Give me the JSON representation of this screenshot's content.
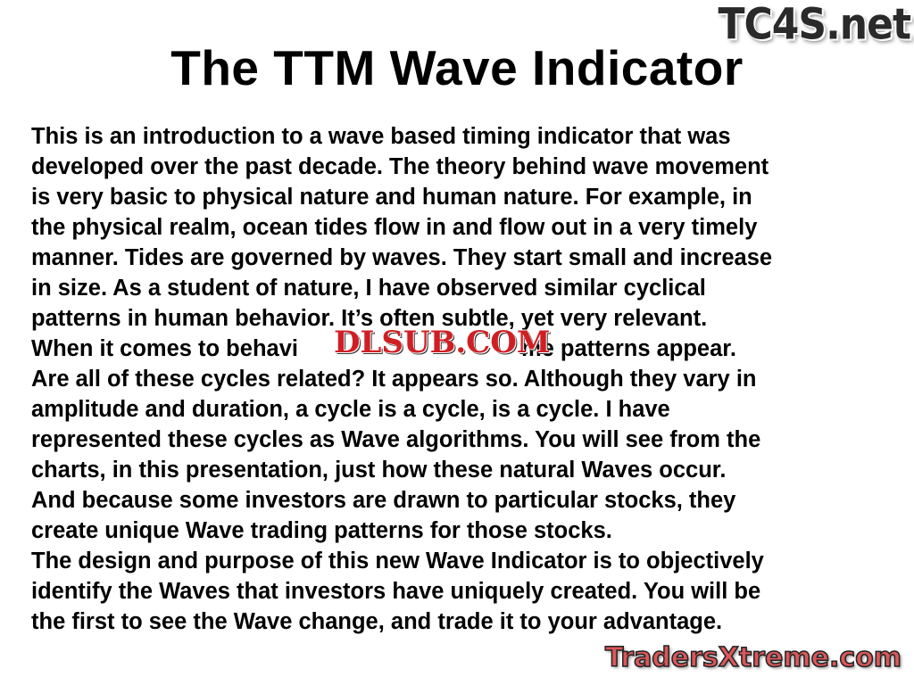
{
  "title": "The TTM Wave Indicator",
  "body_lines": [
    "This is an introduction to a wave based timing indicator that was",
    "developed over the past decade. The theory behind wave movement",
    "is very basic to physical nature and human nature. For example, in",
    "the physical realm, ocean tides flow in and flow out in a very timely",
    "manner. Tides are governed by waves. They start small and increase",
    "in size. As a student of nature, I have observed similar cyclical",
    "patterns in human behavior. It’s often subtle, yet very relevant."
  ],
  "obscured_line": {
    "before": "When it comes to behavi",
    "after": "me patterns appear."
  },
  "body_lines_2": [
    "Are all of these cycles related? It appears so. Although they vary in",
    "amplitude and duration, a cycle is a cycle, is a cycle. I have",
    "represented these cycles as Wave algorithms. You will see from the",
    "charts, in this presentation, just how these natural Waves occur.",
    "And because some investors are drawn to particular stocks, they",
    "create unique Wave trading patterns for those stocks.",
    "The design and purpose of this new Wave Indicator is to objectively",
    "identify the Waves that investors have uniquely created. You will be",
    "the first to see the Wave change, and trade it to your advantage."
  ],
  "watermarks": {
    "top_right": "TC4S.net",
    "middle": "DLSUB.COM",
    "bottom_right": "TradersXtreme.com"
  }
}
